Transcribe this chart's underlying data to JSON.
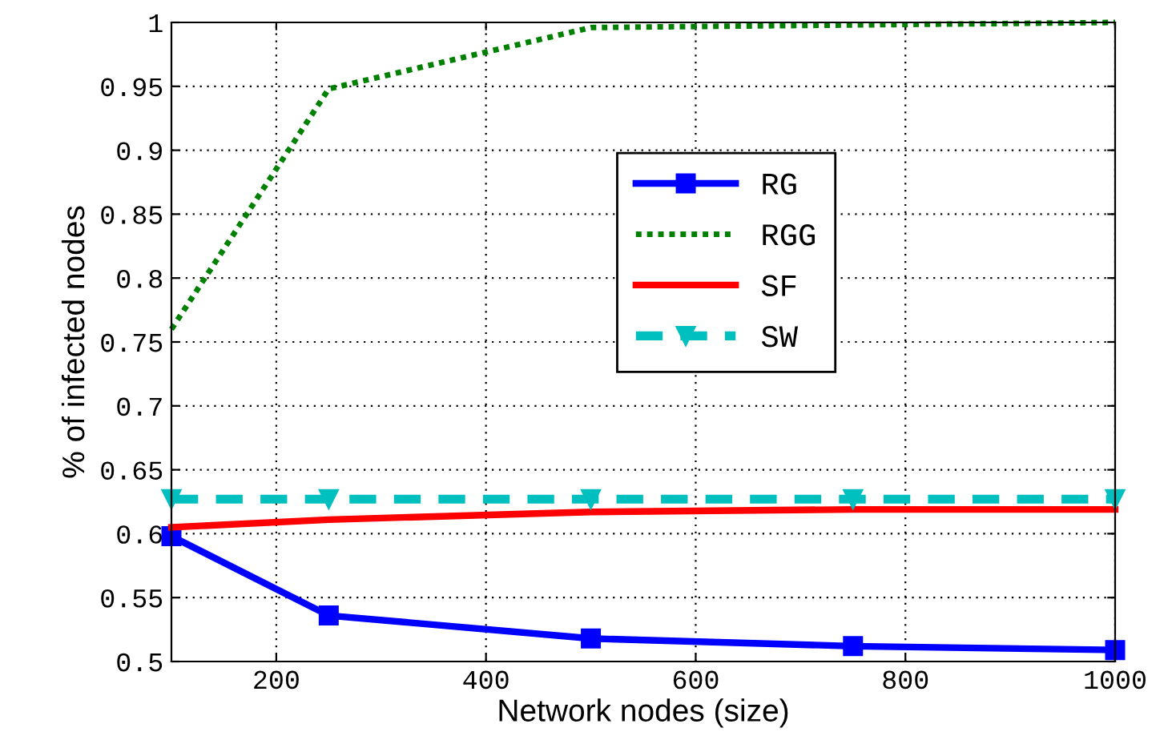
{
  "chart_data": {
    "type": "line",
    "xlabel": "Network nodes (size)",
    "ylabel": "% of infected nodes",
    "x": [
      100,
      250,
      500,
      750,
      1000
    ],
    "series": [
      {
        "name": "RG",
        "color": "#0000ff",
        "values": [
          0.598,
          0.536,
          0.518,
          0.512,
          0.509
        ],
        "marker": "square",
        "line_style": "solid"
      },
      {
        "name": "RGG",
        "color": "#008000",
        "values": [
          0.76,
          0.948,
          0.996,
          0.998,
          1.0
        ],
        "marker": "none",
        "line_style": "dotted"
      },
      {
        "name": "SF",
        "color": "#ff0000",
        "values": [
          0.605,
          0.611,
          0.617,
          0.619,
          0.619
        ],
        "marker": "none",
        "line_style": "solid"
      },
      {
        "name": "SW",
        "color": "#00bfbf",
        "values": [
          0.627,
          0.627,
          0.627,
          0.627,
          0.627
        ],
        "marker": "triangle",
        "line_style": "dashed"
      }
    ],
    "xlim": [
      100,
      1000
    ],
    "xticks": [
      200,
      400,
      600,
      800,
      1000
    ],
    "ylim": [
      0.5,
      1
    ],
    "yticks": [
      0.5,
      0.55,
      0.6,
      0.65,
      0.7,
      0.75,
      0.8,
      0.85,
      0.9,
      0.95,
      1
    ],
    "grid": true,
    "legend": "top right"
  }
}
